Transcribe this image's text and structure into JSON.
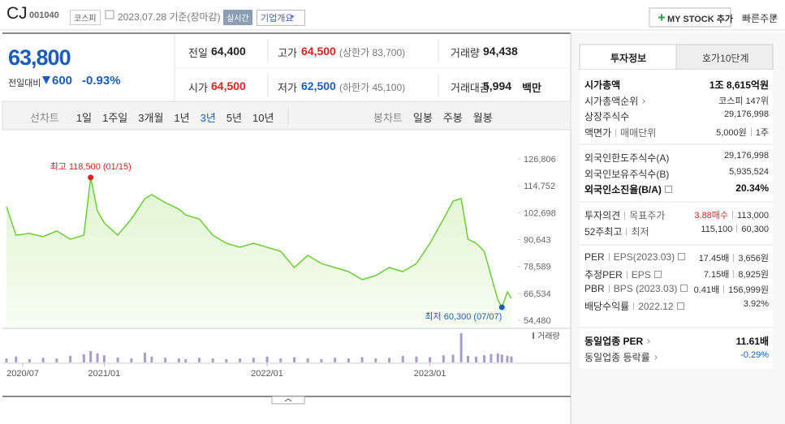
{
  "header": {
    "name": "CJ",
    "code": "001040",
    "market": "코스피",
    "date": "2023.07.28 기준(장마감)",
    "realtime": "실시간",
    "company_info": "기업개요",
    "my_stock": "MY STOCK 추가",
    "quick_order": "빠른주문"
  },
  "price": {
    "current": "63,800",
    "change_label": "전일대비",
    "change": "600",
    "change_rate": "-0.93%"
  },
  "summary": [
    [
      {
        "label": "전일",
        "value": "64,400"
      },
      {
        "label": "고가",
        "value": "64,500",
        "color": "#e02020",
        "note": "(상한가 83,700)"
      },
      {
        "label": "거래량",
        "value": "94,438"
      }
    ],
    [
      {
        "label": "시가",
        "value": "64,500",
        "color": "#e02020"
      },
      {
        "label": "저가",
        "value": "62,500",
        "color": "#1a5dbe",
        "note": "(하한가 45,100)"
      },
      {
        "label": "거래대금",
        "value": "5,994",
        "unit": "백만"
      }
    ]
  ],
  "chart_tabs": {
    "line_label": "선차트",
    "line": [
      "1일",
      "1주일",
      "3개월",
      "1년",
      "3년",
      "5년",
      "10년"
    ],
    "selected": "3년",
    "candle_label": "봉차트",
    "candle": [
      "일봉",
      "주봉",
      "월봉"
    ]
  },
  "chart_data": {
    "type": "line",
    "color": "#6dcc3a",
    "x": [
      -1.2,
      -0.5,
      0.5,
      1.5,
      2.5,
      3.5,
      4.5,
      5,
      5.5,
      6,
      7,
      8,
      9,
      9.5,
      10.5,
      11.5,
      12,
      13,
      14,
      15,
      16,
      17,
      18,
      19,
      20,
      21,
      22,
      23,
      24,
      25,
      26,
      27,
      28,
      29,
      30,
      31,
      31.7,
      32.3,
      32.8,
      33.4,
      34,
      34.5,
      35,
      35.3,
      35.7,
      36
    ],
    "values": [
      105400,
      92600,
      93400,
      91900,
      94500,
      90800,
      92600,
      118500,
      103500,
      98100,
      92600,
      99900,
      109000,
      110800,
      107200,
      104300,
      101700,
      99900,
      92600,
      89000,
      87200,
      89000,
      87200,
      85400,
      78100,
      83600,
      79900,
      78100,
      76300,
      72700,
      74500,
      78100,
      76300,
      79900,
      89000,
      99900,
      107900,
      109000,
      90800,
      89000,
      85400,
      74500,
      63600,
      60300,
      67200,
      64300
    ],
    "xlim": [
      -1.2,
      36.3
    ],
    "ylim": [
      54480,
      126806
    ],
    "yticks": [
      {
        "value": 54480,
        "label": "54,480"
      },
      {
        "value": 66534,
        "label": "66,534"
      },
      {
        "value": 78589,
        "label": "78,589"
      },
      {
        "value": 90643,
        "label": "90,643"
      },
      {
        "value": 102698,
        "label": "102,698"
      },
      {
        "value": 114752,
        "label": "114,752"
      },
      {
        "value": 126806,
        "label": "126,806"
      }
    ],
    "xticks": [
      {
        "value": 0,
        "label": "2020/07"
      },
      {
        "value": 6,
        "label": "2021/01"
      },
      {
        "value": 18,
        "label": "2022/01"
      },
      {
        "value": 30,
        "label": "2023/01"
      }
    ],
    "annotations": [
      {
        "text": "최고 118,500 (01/15)",
        "x": 5,
        "value": 118500,
        "color": "#e02020"
      },
      {
        "text": "최저 60,300 (07/07)",
        "x": 35.3,
        "value": 60300,
        "color": "#1a5dbe"
      }
    ],
    "volume": {
      "label": "거래량",
      "color": "#a99cc8",
      "ylim": [
        0,
        100
      ],
      "values": [
        12,
        18,
        10,
        14,
        12,
        20,
        25,
        35,
        28,
        22,
        15,
        12,
        30,
        18,
        14,
        12,
        10,
        14,
        12,
        10,
        12,
        14,
        18,
        12,
        16,
        12,
        10,
        14,
        12,
        16,
        12,
        14,
        20,
        18,
        16,
        22,
        24,
        90,
        20,
        18,
        22,
        26,
        28,
        24,
        20,
        18
      ]
    }
  },
  "info_tabs": [
    "투자정보",
    "호가10단계"
  ],
  "info": [
    [
      {
        "labels": [
          "시가총액"
        ],
        "values": [
          "1조 8,615억원"
        ],
        "bold": true
      },
      {
        "labels": [
          "시가총액순위"
        ],
        "values": [
          "코스피 147위"
        ],
        "link": true
      },
      {
        "labels": [
          "상장주식수"
        ],
        "values": [
          "29,176,998"
        ]
      },
      {
        "labels": [
          "액면가",
          "매매단위"
        ],
        "values": [
          "5,000원",
          "1주"
        ]
      }
    ],
    [
      {
        "labels": [
          "외국인한도주식수(A)"
        ],
        "values": [
          "29,176,998"
        ]
      },
      {
        "labels": [
          "외국인보유주식수(B)"
        ],
        "values": [
          "5,935,524"
        ]
      },
      {
        "labels": [
          "외국인소진율(B/A)"
        ],
        "values": [
          "20.34%"
        ],
        "bold": true,
        "help": true
      }
    ],
    [
      {
        "labels": [
          "투자의견",
          "목표주가"
        ],
        "values": [
          "3.88매수",
          "113,000"
        ],
        "highlight": "#e02020"
      },
      {
        "labels": [
          "52주최고",
          "최저"
        ],
        "values": [
          "115,100",
          "60,300"
        ]
      }
    ],
    [
      {
        "labels": [
          "PER",
          "EPS(2023.03)"
        ],
        "values": [
          "17.45배",
          "3,656원"
        ],
        "help": true
      },
      {
        "labels": [
          "추정PER",
          "EPS"
        ],
        "values": [
          "7.15배",
          "8,925원"
        ],
        "help": true
      },
      {
        "labels": [
          "PBR",
          "BPS (2023.03)"
        ],
        "values": [
          "0.41배",
          "156,999원"
        ],
        "help": true
      },
      {
        "labels": [
          "배당수익률",
          "2022.12"
        ],
        "values": [
          "3.92%"
        ],
        "help": true
      }
    ],
    [
      {
        "labels": [
          "동일업종 PER"
        ],
        "values": [
          "11.61배"
        ],
        "bold": true,
        "link": true
      },
      {
        "labels": [
          "동일업종 등락률"
        ],
        "values": [
          "-0.29%"
        ],
        "link": true,
        "highlight": "#1a5dbe"
      }
    ]
  ]
}
